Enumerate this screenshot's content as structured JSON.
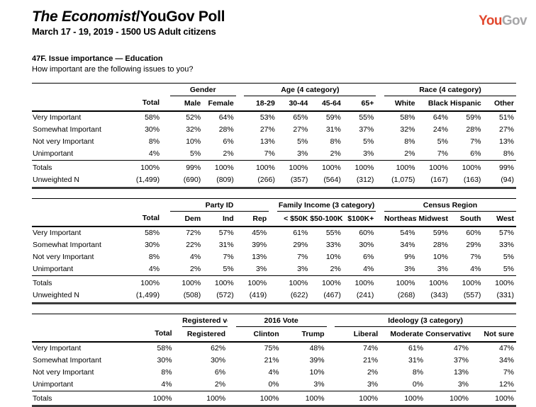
{
  "header": {
    "title_italic": "The Economist",
    "title_rest": "/YouGov Poll",
    "subtitle": "March 17 - 19, 2019 - 1500 US Adult citizens",
    "logo_part1": "You",
    "logo_part2": "Gov",
    "logo_color1": "#E2492F",
    "logo_color2": "#A7A7A9"
  },
  "question": {
    "number_title": "47F. Issue importance — Education",
    "text": "How important are the following issues to you?"
  },
  "tables": [
    {
      "groups": [
        {
          "label": "",
          "cols": [
            "Total"
          ]
        },
        {
          "label": "Gender",
          "cols": [
            "Male",
            "Female"
          ]
        },
        {
          "label": "Age (4 category)",
          "cols": [
            "18-29",
            "30-44",
            "45-64",
            "65+"
          ]
        },
        {
          "label": "Race (4 category)",
          "cols": [
            "White",
            "Black",
            "Hispanic",
            "Other"
          ]
        }
      ],
      "rows": [
        {
          "label": "Very Important",
          "values": [
            "58%",
            "52%",
            "64%",
            "53%",
            "65%",
            "59%",
            "55%",
            "58%",
            "64%",
            "59%",
            "51%"
          ]
        },
        {
          "label": "Somewhat Important",
          "values": [
            "30%",
            "32%",
            "28%",
            "27%",
            "27%",
            "31%",
            "37%",
            "32%",
            "24%",
            "28%",
            "27%"
          ]
        },
        {
          "label": "Not very Important",
          "values": [
            "8%",
            "10%",
            "6%",
            "13%",
            "5%",
            "8%",
            "5%",
            "8%",
            "5%",
            "7%",
            "13%"
          ]
        },
        {
          "label": "Unimportant",
          "values": [
            "4%",
            "5%",
            "2%",
            "7%",
            "3%",
            "2%",
            "3%",
            "2%",
            "7%",
            "6%",
            "8%"
          ]
        }
      ],
      "footer_rows": [
        {
          "label": "Totals",
          "values": [
            "100%",
            "99%",
            "100%",
            "100%",
            "100%",
            "100%",
            "100%",
            "100%",
            "100%",
            "100%",
            "99%"
          ]
        },
        {
          "label": "Unweighted N",
          "values": [
            "(1,499)",
            "(690)",
            "(809)",
            "(266)",
            "(357)",
            "(564)",
            "(312)",
            "(1,075)",
            "(167)",
            "(163)",
            "(94)"
          ]
        }
      ]
    },
    {
      "groups": [
        {
          "label": "",
          "cols": [
            "Total"
          ]
        },
        {
          "label": "Party ID",
          "cols": [
            "Dem",
            "Ind",
            "Rep"
          ]
        },
        {
          "label": "Family Income (3 category)",
          "cols": [
            "< $50K",
            "$50-100K",
            "$100K+"
          ]
        },
        {
          "label": "Census Region",
          "cols": [
            "Northeast",
            "Midwest",
            "South",
            "West"
          ]
        }
      ],
      "rows": [
        {
          "label": "Very Important",
          "values": [
            "58%",
            "72%",
            "57%",
            "45%",
            "61%",
            "55%",
            "60%",
            "54%",
            "59%",
            "60%",
            "57%"
          ]
        },
        {
          "label": "Somewhat Important",
          "values": [
            "30%",
            "22%",
            "31%",
            "39%",
            "29%",
            "33%",
            "30%",
            "34%",
            "28%",
            "29%",
            "33%"
          ]
        },
        {
          "label": "Not very Important",
          "values": [
            "8%",
            "4%",
            "7%",
            "13%",
            "7%",
            "10%",
            "6%",
            "9%",
            "10%",
            "7%",
            "5%"
          ]
        },
        {
          "label": "Unimportant",
          "values": [
            "4%",
            "2%",
            "5%",
            "3%",
            "3%",
            "2%",
            "4%",
            "3%",
            "3%",
            "4%",
            "5%"
          ]
        }
      ],
      "footer_rows": [
        {
          "label": "Totals",
          "values": [
            "100%",
            "100%",
            "100%",
            "100%",
            "100%",
            "100%",
            "100%",
            "100%",
            "100%",
            "100%",
            "100%"
          ]
        },
        {
          "label": "Unweighted N",
          "values": [
            "(1,499)",
            "(508)",
            "(572)",
            "(419)",
            "(622)",
            "(467)",
            "(241)",
            "(268)",
            "(343)",
            "(557)",
            "(331)"
          ]
        }
      ]
    },
    {
      "groups": [
        {
          "label": "",
          "cols": [
            "Total"
          ]
        },
        {
          "label": "Registered voters",
          "cols": [
            "Registered"
          ]
        },
        {
          "label": "2016 Vote",
          "cols": [
            "Clinton",
            "Trump"
          ]
        },
        {
          "label": "Ideology (3 category)",
          "cols": [
            "Liberal",
            "Moderate",
            "Conservative",
            "Not sure"
          ]
        }
      ],
      "rows": [
        {
          "label": "Very Important",
          "values": [
            "58%",
            "62%",
            "75%",
            "48%",
            "74%",
            "61%",
            "47%",
            "47%"
          ]
        },
        {
          "label": "Somewhat Important",
          "values": [
            "30%",
            "30%",
            "21%",
            "39%",
            "21%",
            "31%",
            "37%",
            "34%"
          ]
        },
        {
          "label": "Not very Important",
          "values": [
            "8%",
            "6%",
            "4%",
            "10%",
            "2%",
            "8%",
            "13%",
            "7%"
          ]
        },
        {
          "label": "Unimportant",
          "values": [
            "4%",
            "2%",
            "0%",
            "3%",
            "3%",
            "0%",
            "3%",
            "12%"
          ]
        }
      ],
      "footer_rows": [
        {
          "label": "Totals",
          "values": [
            "100%",
            "100%",
            "100%",
            "100%",
            "100%",
            "100%",
            "100%",
            "100%"
          ]
        }
      ]
    }
  ]
}
